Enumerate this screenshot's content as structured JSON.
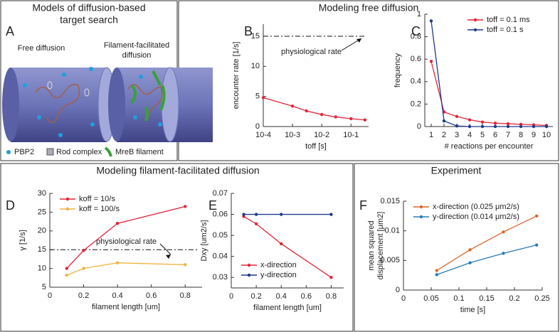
{
  "panel_a": {
    "letter": "A",
    "title": [
      "Models of diffusion-based",
      "target search"
    ],
    "free": "Free diffusion",
    "facilitated": [
      "Filament-facilitated",
      "diffusion"
    ],
    "legend": [
      "PBP2",
      "Rod complex",
      "MreB filament"
    ]
  },
  "sections": [
    "Modeling free diffusion",
    "Modeling filament-facilitated diffusion",
    "Experiment"
  ],
  "chart_data": [
    {
      "type": "line",
      "panel": "B",
      "xscale": "log",
      "xlabel": "toff [s]",
      "ylabel": "encounter rate [1/s]",
      "x": [
        0.0001,
        0.001,
        0.003,
        0.01,
        0.03,
        0.1,
        0.3
      ],
      "series": [
        {
          "name": null,
          "color": "#e2263a",
          "values": [
            4.8,
            3.4,
            2.6,
            2.0,
            1.6,
            1.3,
            1.1
          ]
        }
      ],
      "xlim": [
        0.0001,
        0.4
      ],
      "xticks": [
        {
          "value": 0.0001,
          "label": "10-4"
        },
        {
          "value": 0.001,
          "label": "10-3"
        },
        {
          "value": 0.01,
          "label": "10-2"
        },
        {
          "value": 0.1,
          "label": "10-1"
        }
      ],
      "ylim": [
        0,
        17
      ],
      "yticks": [
        0,
        5,
        10,
        15
      ],
      "reference_line": {
        "value": 15,
        "label": "physiological rate"
      }
    },
    {
      "type": "line",
      "panel": "C",
      "xlabel": "# reactions per encounter",
      "ylabel": "frequency",
      "legend": "upper right",
      "x": [
        1,
        2,
        3,
        4,
        5,
        6,
        7,
        8,
        9,
        10
      ],
      "series": [
        {
          "name": "toff = 0.1 ms",
          "color": "#e2263a",
          "values": [
            0.58,
            0.13,
            0.09,
            0.06,
            0.04,
            0.03,
            0.025,
            0.02,
            0.015,
            0.01
          ]
        },
        {
          "name": "toff = 0.1 s",
          "color": "#1f3a8a",
          "values": [
            0.94,
            0.05,
            0.005,
            0,
            0,
            0,
            0,
            0,
            0,
            0
          ]
        }
      ],
      "xlim": [
        0.5,
        10.5
      ],
      "xticks": [
        1,
        2,
        3,
        4,
        5,
        6,
        7,
        8,
        9,
        10
      ],
      "ylim": [
        0,
        1
      ],
      "yticks": [
        0,
        0.2,
        0.4,
        0.6,
        0.8,
        1
      ]
    },
    {
      "type": "line",
      "panel": "D",
      "xlabel": "filament length [um]",
      "ylabel": "γ [1/s]",
      "legend": "upper left",
      "x": [
        0.1,
        0.2,
        0.4,
        0.8
      ],
      "series": [
        {
          "name": "koff = 10/s",
          "color": "#e2263a",
          "values": [
            10,
            14.8,
            22,
            26.5
          ]
        },
        {
          "name": "koff = 100/s",
          "color": "#f0b443",
          "values": [
            8.2,
            10,
            11.5,
            11
          ]
        }
      ],
      "xlim": [
        0,
        0.9
      ],
      "xticks": [
        0,
        0.2,
        0.4,
        0.6,
        0.8
      ],
      "ylim": [
        5,
        30
      ],
      "yticks": [
        5,
        10,
        15,
        20,
        25,
        30
      ],
      "reference_line": {
        "value": 15,
        "label": "physiological rate"
      }
    },
    {
      "type": "line",
      "panel": "E",
      "xlabel": "filament length [um]",
      "ylabel": "Dxy [um2/s]",
      "legend": "lower left",
      "x": [
        0.1,
        0.2,
        0.4,
        0.8
      ],
      "series": [
        {
          "name": "x-direction",
          "color": "#e2263a",
          "values": [
            0.059,
            0.0555,
            0.046,
            0.03
          ]
        },
        {
          "name": "y-direction",
          "color": "#1f3a8a",
          "values": [
            0.06,
            0.06,
            0.06,
            0.06
          ]
        }
      ],
      "xlim": [
        0,
        0.9
      ],
      "xticks": [
        0,
        0.2,
        0.4,
        0.6,
        0.8
      ],
      "ylim": [
        0.025,
        0.07
      ],
      "yticks": [
        0.03,
        0.04,
        0.05,
        0.06,
        0.07
      ]
    },
    {
      "type": "line",
      "panel": "F",
      "xlabel": "time [s]",
      "ylabel": [
        "mean squared",
        "displacement [μm2]"
      ],
      "legend": "upper left",
      "x": [
        0.06,
        0.12,
        0.18,
        0.24
      ],
      "series": [
        {
          "name": "x-direction (0.025 μm2/s)",
          "color": "#d9662b",
          "values": [
            0.0033,
            0.0068,
            0.0098,
            0.0125
          ]
        },
        {
          "name": "y-direction (0.014 μm2/s)",
          "color": "#2a7bb5",
          "values": [
            0.0026,
            0.0046,
            0.0062,
            0.0076
          ]
        }
      ],
      "xlim": [
        0,
        0.25
      ],
      "xticks": [
        0,
        0.05,
        0.1,
        0.15,
        0.2,
        0.25
      ],
      "ylim": [
        0,
        0.015
      ],
      "yticks": [
        0,
        0.005,
        0.01,
        0.015
      ]
    }
  ]
}
